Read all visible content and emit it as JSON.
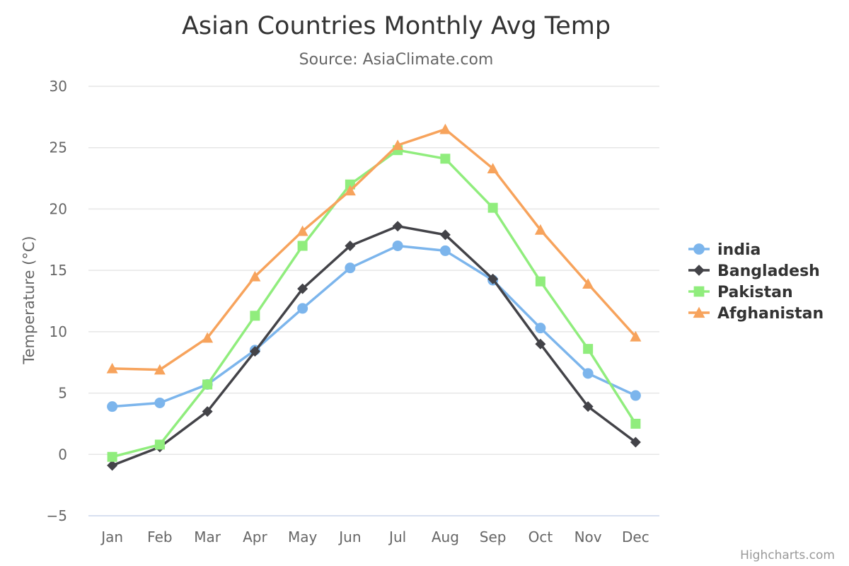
{
  "chart_data": {
    "type": "line",
    "title": "Asian Countries Monthly Avg Temp",
    "subtitle": "Source: AsiaClimate.com",
    "ylabel": "Temperature (°C)",
    "xlabel": "",
    "categories": [
      "Jan",
      "Feb",
      "Mar",
      "Apr",
      "May",
      "Jun",
      "Jul",
      "Aug",
      "Sep",
      "Oct",
      "Nov",
      "Dec"
    ],
    "ylim": [
      -5,
      30
    ],
    "yticks": [
      -5,
      0,
      5,
      10,
      15,
      20,
      25,
      30
    ],
    "grid": true,
    "legend_position": "right",
    "series": [
      {
        "name": "india",
        "color": "#7cb5ec",
        "marker": "circle",
        "values": [
          3.9,
          4.2,
          5.7,
          8.5,
          11.9,
          15.2,
          17.0,
          16.6,
          14.2,
          10.3,
          6.6,
          4.8
        ]
      },
      {
        "name": "Bangladesh",
        "color": "#434348",
        "marker": "diamond",
        "values": [
          -0.9,
          0.6,
          3.5,
          8.4,
          13.5,
          17.0,
          18.6,
          17.9,
          14.3,
          9.0,
          3.9,
          1.0
        ]
      },
      {
        "name": "Pakistan",
        "color": "#90ed7d",
        "marker": "square",
        "values": [
          -0.2,
          0.8,
          5.7,
          11.3,
          17.0,
          22.0,
          24.8,
          24.1,
          20.1,
          14.1,
          8.6,
          2.5
        ]
      },
      {
        "name": "Afghanistan",
        "color": "#f7a35c",
        "marker": "triangle",
        "values": [
          7.0,
          6.9,
          9.5,
          14.5,
          18.2,
          21.5,
          25.2,
          26.5,
          23.3,
          18.3,
          13.9,
          9.6
        ]
      }
    ]
  },
  "credits": "Highcharts.com"
}
